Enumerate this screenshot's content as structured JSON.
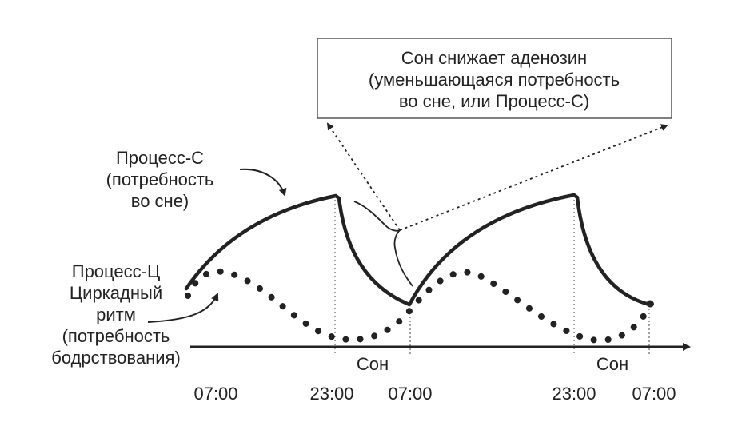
{
  "info_box": {
    "line1": "Сон снижает аденозин",
    "line2": "(уменьшающаяся потребность",
    "line3": "во сне, или Процесс-С)"
  },
  "process_s_label": {
    "line1": "Процесс-С",
    "line2": "(потребность",
    "line3": "во сне)"
  },
  "process_c_label": {
    "line1": "Процесс-Ц",
    "line2": "Циркадный",
    "line3": "ритм",
    "line4": "(потребность",
    "line5": "бодрствования)"
  },
  "sleep_labels": [
    "Сон",
    "Сон"
  ],
  "time_ticks": [
    "07:00",
    "23:00",
    "07:00",
    "23:00",
    "07:00"
  ],
  "colors": {
    "ink": "#222222",
    "box_border": "#555555"
  }
}
